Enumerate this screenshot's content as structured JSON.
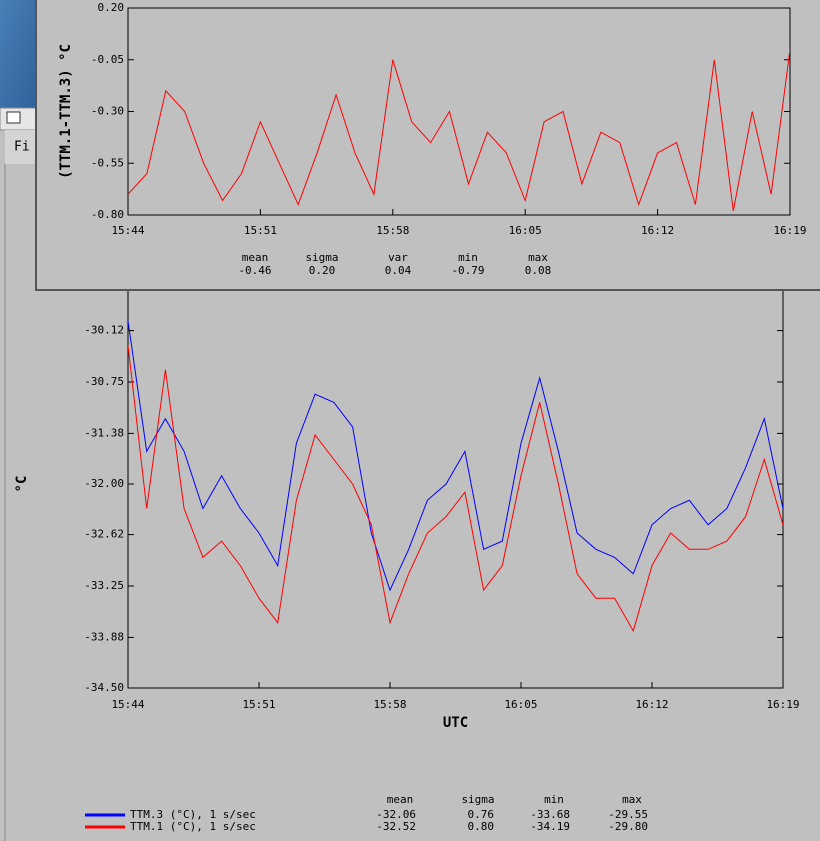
{
  "window": {
    "menu": "Fi"
  },
  "chart_data": [
    {
      "type": "line",
      "ylabel": "(TTM.1-TTM.3) °C",
      "x": [
        0,
        1,
        2,
        3,
        4,
        5,
        6,
        7,
        8,
        9,
        10,
        11,
        12,
        13,
        14,
        15,
        16,
        17,
        18,
        19,
        20,
        21,
        22,
        23,
        24,
        25,
        26,
        27,
        28,
        29,
        30,
        31,
        32,
        33,
        34,
        35
      ],
      "series": [
        {
          "color": "#ff0000",
          "values": [
            -0.7,
            -0.6,
            -0.2,
            -0.3,
            -0.55,
            -0.73,
            -0.6,
            -0.35,
            -0.55,
            -0.75,
            -0.5,
            -0.22,
            -0.5,
            -0.7,
            -0.05,
            -0.35,
            -0.45,
            -0.3,
            -0.65,
            -0.4,
            -0.5,
            -0.73,
            -0.35,
            -0.3,
            -0.65,
            -0.4,
            -0.45,
            -0.75,
            -0.5,
            -0.45,
            -0.75,
            -0.05,
            -0.78,
            -0.3,
            -0.7,
            0.0
          ]
        }
      ],
      "xlim": [
        0,
        35
      ],
      "xticks": [
        {
          "value": 0,
          "label": "15:44"
        },
        {
          "value": 7,
          "label": "15:51"
        },
        {
          "value": 14,
          "label": "15:58"
        },
        {
          "value": 21,
          "label": "16:05"
        },
        {
          "value": 28,
          "label": "16:12"
        },
        {
          "value": 35,
          "label": "16:19"
        }
      ],
      "ylim": [
        -0.8,
        0.2
      ],
      "yticks": [
        {
          "value": -0.8,
          "label": "-0.80"
        },
        -0.55,
        {
          "value": -0.3,
          "label": "-0.30"
        },
        -0.05,
        {
          "value": 0.2,
          "label": "0.20"
        }
      ],
      "stats": {
        "headers": [
          "mean",
          "sigma",
          "var",
          "min",
          "max"
        ],
        "rows": [
          [
            "-0.46",
            "0.20",
            "0.04",
            "-0.79",
            "0.08"
          ]
        ]
      }
    },
    {
      "type": "line",
      "ylabel": "°C",
      "xlabel": "UTC",
      "x": [
        0,
        1,
        2,
        3,
        4,
        5,
        6,
        7,
        8,
        9,
        10,
        11,
        12,
        13,
        14,
        15,
        16,
        17,
        18,
        19,
        20,
        21,
        22,
        23,
        24,
        25,
        26,
        27,
        28,
        29,
        30,
        31,
        32,
        33,
        34,
        35
      ],
      "series": [
        {
          "name": "TTM.3 (°C), 1 s/sec",
          "color": "#0000ff",
          "values": [
            -30.0,
            -31.6,
            -31.2,
            -31.6,
            -32.3,
            -31.9,
            -32.3,
            -32.6,
            -33.0,
            -31.5,
            -30.9,
            -31.0,
            -31.3,
            -32.6,
            -33.3,
            -32.8,
            -32.2,
            -32.0,
            -31.6,
            -32.8,
            -32.7,
            -31.5,
            -30.7,
            -31.6,
            -32.6,
            -32.8,
            -32.9,
            -33.1,
            -32.5,
            -32.3,
            -32.2,
            -32.5,
            -32.3,
            -31.8,
            -31.2,
            -32.3
          ]
        },
        {
          "name": "TTM.1 (°C), 1 s/sec",
          "color": "#ff0000",
          "values": [
            -30.3,
            -32.3,
            -30.6,
            -32.3,
            -32.9,
            -32.7,
            -33.0,
            -33.4,
            -33.7,
            -32.2,
            -31.4,
            -31.7,
            -32.0,
            -32.5,
            -33.7,
            -33.1,
            -32.6,
            -32.4,
            -32.1,
            -33.3,
            -33.0,
            -31.9,
            -31.0,
            -32.0,
            -33.1,
            -33.4,
            -33.4,
            -33.8,
            -33.0,
            -32.6,
            -32.8,
            -32.8,
            -32.7,
            -32.4,
            -31.7,
            -32.5
          ]
        }
      ],
      "xlim": [
        0,
        35
      ],
      "xticks": [
        {
          "value": 0,
          "label": "15:44"
        },
        {
          "value": 7,
          "label": "15:51"
        },
        {
          "value": 14,
          "label": "15:58"
        },
        {
          "value": 21,
          "label": "16:05"
        },
        {
          "value": 28,
          "label": "16:12"
        },
        {
          "value": 35,
          "label": "16:19"
        }
      ],
      "ylim": [
        -34.5,
        -29.5
      ],
      "yticks": [
        {
          "value": -34.5,
          "label": "-34.50"
        },
        -33.88,
        -33.25,
        -32.62,
        {
          "value": -32.0,
          "label": "-32.00"
        },
        -31.38,
        -30.75,
        -30.12
      ],
      "stats": {
        "headers": [
          "mean",
          "sigma",
          "min",
          "max"
        ],
        "rows": [
          [
            "-32.06",
            "0.76",
            "-33.68",
            "-29.55"
          ],
          [
            "-32.52",
            "0.80",
            "-34.19",
            "-29.80"
          ]
        ]
      }
    }
  ]
}
